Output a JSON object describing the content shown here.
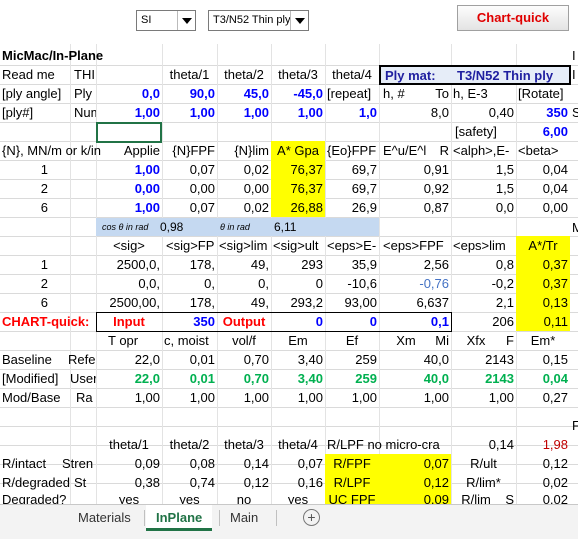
{
  "toolbar": {
    "units_select": "SI",
    "material_select": "T3/N52 Thin ply",
    "chart_quick_button": "Chart-quick"
  },
  "sheet": {
    "title": "MicMac/In-Plane",
    "right_edge_1": "I",
    "right_edge_2": "S",
    "right_edge_3": "M",
    "right_edge_4": "F",
    "r1": {
      "a": "Read me",
      "b": "THI",
      "c": "theta/1",
      "d": "theta/2",
      "e": "theta/3",
      "f": "theta/4",
      "ply_mat_label": "Ply mat:",
      "ply_mat_value": "T3/N52  Thin ply"
    },
    "r2": {
      "a": "[ply angle]",
      "b": "Ply",
      "c": "0,0",
      "d": "90,0",
      "e": "45,0",
      "f": "-45,0",
      "g": "[repeat]",
      "h": "h, #",
      "i": "To",
      "j": "h, E-3",
      "k": "[Rotate]"
    },
    "r3": {
      "a": "[ply#]",
      "b": "Num",
      "c": "1,00",
      "d": "1,00",
      "e": "1,00",
      "f": "1,00",
      "g": "1,0",
      "h": "8,0",
      "j": "0,40",
      "k": "350"
    },
    "r4": {
      "k_label": "[safety]",
      "k": "6,00"
    },
    "r5": {
      "a": "{N}, MN/m or k/in",
      "c": "Applie",
      "d": "{N}FPF",
      "e": "{N}lim",
      "f": "A* Gpa",
      "g": "{Eo}FPF",
      "h": "E^u/E^l",
      "i": "R",
      "j": "<alph>,E-",
      "k": "<beta>"
    },
    "r6": {
      "a": "1",
      "c": "1,00",
      "d": "0,07",
      "e": "0,02",
      "f": "76,37",
      "g": "69,7",
      "h": "0,91",
      "j": "1,5",
      "k": "0,04"
    },
    "r7": {
      "a": "2",
      "c": "0,00",
      "d": "0,00",
      "e": "0,00",
      "f": "76,37",
      "g": "69,7",
      "h": "0,92",
      "j": "1,5",
      "k": "0,04"
    },
    "r8": {
      "a": "6",
      "c": "1,00",
      "d": "0,07",
      "e": "0,02",
      "f": "26,88",
      "g": "26,9",
      "h": "0,87",
      "j": "0,0",
      "k": "0,00"
    },
    "r9": {
      "cos_label": "cos θ in rad",
      "cos_value": "0,98",
      "theta_label": "θ in rad",
      "theta_value": "6,11"
    },
    "r10": {
      "c": "<sig>",
      "d": "<sig>FP",
      "e": "<sig>lim",
      "f": "<sig>ult",
      "g": "<eps>E-",
      "h": "<eps>FPF",
      "j": "<eps>lim",
      "k": "A*/Tr"
    },
    "r11": {
      "a": "1",
      "c": "2500,0,",
      "d": "178,",
      "e": "49,",
      "f": "293",
      "g": "35,9",
      "h": "2,56",
      "j": "0,8",
      "k": "0,37"
    },
    "r12": {
      "a": "2",
      "c": "0,0,",
      "d": "0,",
      "e": "0,",
      "f": "0",
      "g": "-10,6",
      "h": "-0,76",
      "j": "-0,2",
      "k": "0,37"
    },
    "r13": {
      "a": "6",
      "c": "2500,00,",
      "d": "178,",
      "e": "49,",
      "f": "293,2",
      "g": "93,00",
      "h": "6,637",
      "j": "2,1",
      "k": "0,13"
    },
    "r14": {
      "a": "CHART-quick:",
      "input_label": "Input",
      "input_value": "350",
      "output_label": "Output",
      "f": "0",
      "g": "0",
      "h": "0,1",
      "j": "206",
      "k": "0,11"
    },
    "r15": {
      "c": "T opr",
      "d": "c, moist",
      "e": "vol/f",
      "f": "Em",
      "g": "Ef",
      "h": "Xm",
      "i": "Mi",
      "j": "Xfx",
      "jj": "F",
      "k": "Em*"
    },
    "r16": {
      "a": "Baseline",
      "b": "Refe",
      "c": "22,0",
      "d": "0,01",
      "e": "0,70",
      "f": "3,40",
      "g": "259",
      "h": "40,0",
      "j": "2143",
      "k": "0,15"
    },
    "r17": {
      "a": "[Modified]",
      "b": "User",
      "c": "22,0",
      "d": "0,01",
      "e": "0,70",
      "f": "3,40",
      "g": "259",
      "h": "40,0",
      "j": "2143",
      "k": "0,04"
    },
    "r18": {
      "a": "Mod/Base",
      "b": "Ra",
      "c": "1,00",
      "d": "1,00",
      "e": "1,00",
      "f": "1,00",
      "g": "1,00",
      "h": "1,00",
      "j": "1,00",
      "k": "0,27"
    },
    "r20": {
      "c": "theta/1",
      "d": "theta/2",
      "e": "theta/3",
      "f": "theta/4",
      "g": "R/LPF no micro-cra",
      "j": "0,14",
      "k": "1,98"
    },
    "r21": {
      "a": "R/intact",
      "b": "Stren",
      "c": "0,09",
      "d": "0,08",
      "e": "0,14",
      "f": "0,07",
      "g": "R/FPF",
      "h": "0,07",
      "i": "R/ult",
      "k": "0,12"
    },
    "r22": {
      "a": "R/degraded",
      "b": "St",
      "c": "0,38",
      "d": "0,74",
      "e": "0,12",
      "f": "0,16",
      "g": "R/LPF",
      "h": "0,12",
      "i": "R/lim*",
      "k": "0,02"
    },
    "r23": {
      "a": "Degraded?",
      "c": "yes",
      "d": "yes",
      "e": "no",
      "f": "yes",
      "g": "UC FPF",
      "h": "0,09",
      "i": "R/lim",
      "ii": "S",
      "k": "0,02"
    }
  },
  "tabs": [
    "Materials",
    "InPlane",
    "Main"
  ],
  "active_tab": "InPlane",
  "icons": {
    "dropdown": "chevron-down-icon",
    "add_sheet": "plus-circle-icon"
  }
}
